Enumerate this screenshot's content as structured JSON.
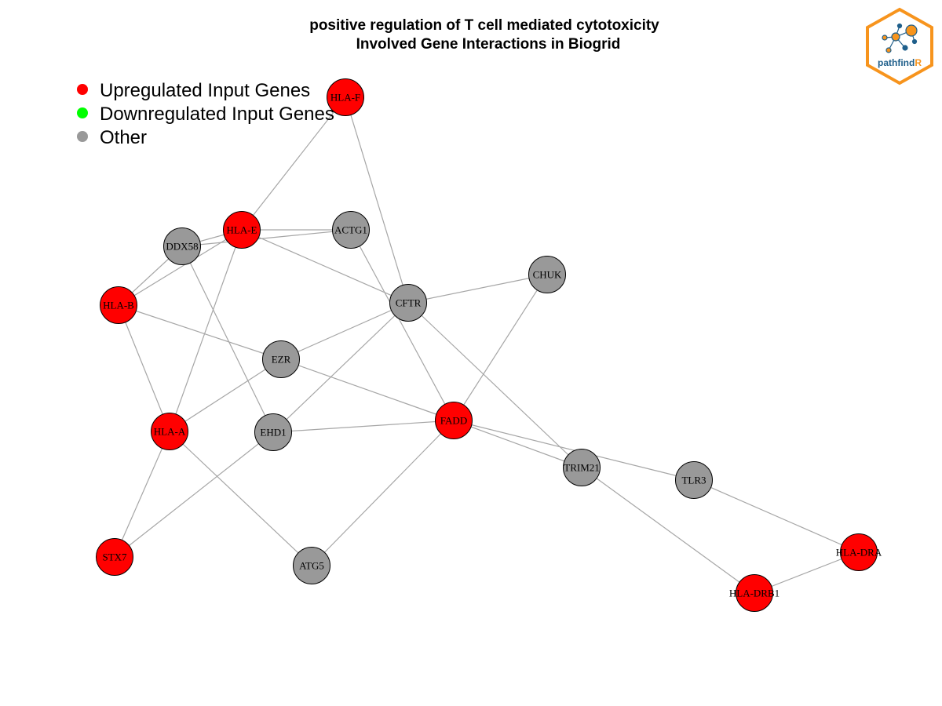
{
  "title": {
    "line1": "positive regulation of T cell mediated cytotoxicity",
    "line2": "Involved Gene Interactions in Biogrid"
  },
  "legend": [
    {
      "label": "Upregulated Input Genes",
      "color": "#ff0000"
    },
    {
      "label": "Downregulated Input Genes",
      "color": "#00ff00"
    },
    {
      "label": "Other",
      "color": "#999999"
    }
  ],
  "logo": {
    "text_main": "pathfind",
    "text_accent": "R",
    "border_color": "#f7941d",
    "text_color": "#1f5f8b",
    "accent_color": "#f7941d"
  },
  "colors": {
    "up": "#ff0000",
    "down": "#00ff00",
    "other": "#999999",
    "edge": "#a6a6a6"
  },
  "nodes": [
    {
      "id": "HLA-F",
      "type": "up"
    },
    {
      "id": "HLA-E",
      "type": "up"
    },
    {
      "id": "ACTG1",
      "type": "other"
    },
    {
      "id": "DDX58",
      "type": "other"
    },
    {
      "id": "HLA-B",
      "type": "up"
    },
    {
      "id": "CFTR",
      "type": "other"
    },
    {
      "id": "CHUK",
      "type": "other"
    },
    {
      "id": "EZR",
      "type": "other"
    },
    {
      "id": "HLA-A",
      "type": "up"
    },
    {
      "id": "EHD1",
      "type": "other"
    },
    {
      "id": "FADD",
      "type": "up"
    },
    {
      "id": "TRIM21",
      "type": "other"
    },
    {
      "id": "TLR3",
      "type": "other"
    },
    {
      "id": "STX7",
      "type": "up"
    },
    {
      "id": "ATG5",
      "type": "other"
    },
    {
      "id": "HLA-DRA",
      "type": "up"
    },
    {
      "id": "HLA-DRB1",
      "type": "up"
    }
  ],
  "edges": [
    [
      "HLA-F",
      "HLA-E"
    ],
    [
      "HLA-F",
      "CFTR"
    ],
    [
      "HLA-E",
      "DDX58"
    ],
    [
      "HLA-E",
      "ACTG1"
    ],
    [
      "HLA-E",
      "HLA-B"
    ],
    [
      "HLA-E",
      "CFTR"
    ],
    [
      "HLA-E",
      "HLA-A"
    ],
    [
      "DDX58",
      "HLA-B"
    ],
    [
      "DDX58",
      "ACTG1"
    ],
    [
      "DDX58",
      "EHD1"
    ],
    [
      "ACTG1",
      "FADD"
    ],
    [
      "HLA-B",
      "EZR"
    ],
    [
      "HLA-B",
      "HLA-A"
    ],
    [
      "CFTR",
      "CHUK"
    ],
    [
      "CFTR",
      "EZR"
    ],
    [
      "CFTR",
      "EHD1"
    ],
    [
      "CFTR",
      "TRIM21"
    ],
    [
      "CHUK",
      "FADD"
    ],
    [
      "EZR",
      "HLA-A"
    ],
    [
      "EZR",
      "FADD"
    ],
    [
      "HLA-A",
      "STX7"
    ],
    [
      "HLA-A",
      "ATG5"
    ],
    [
      "EHD1",
      "FADD"
    ],
    [
      "EHD1",
      "STX7"
    ],
    [
      "FADD",
      "ATG5"
    ],
    [
      "FADD",
      "TRIM21"
    ],
    [
      "FADD",
      "TLR3"
    ],
    [
      "TRIM21",
      "HLA-DRB1"
    ],
    [
      "TLR3",
      "HLA-DRA"
    ],
    [
      "HLA-DRA",
      "HLA-DRB1"
    ]
  ]
}
